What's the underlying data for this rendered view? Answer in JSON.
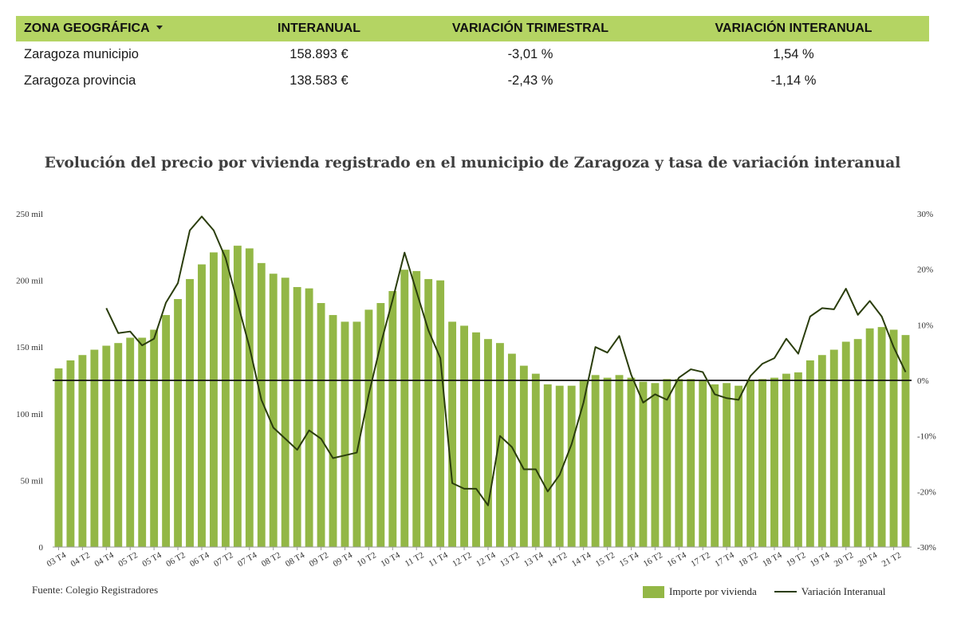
{
  "summary_table": {
    "headers": [
      "ZONA GEOGRÁFICA",
      "INTERANUAL",
      "VARIACIÓN TRIMESTRAL",
      "VARIACIÓN INTERANUAL"
    ],
    "rows": [
      {
        "zone": "Zaragoza municipio",
        "interanual": "158.893 €",
        "var_trimestral": "-3,01 %",
        "var_interanual": "1,54 %"
      },
      {
        "zone": "Zaragoza provincia",
        "interanual": "138.583 €",
        "var_trimestral": "-2,43 %",
        "var_interanual": "-1,14 %"
      }
    ],
    "header_color": "#b4d463"
  },
  "chart": {
    "source": "Fuente: Colegio Registradores"
  },
  "chart_data": {
    "type": "bar",
    "title": "Evolución del precio por vivienda registrado en el municipio de Zaragoza y tasa de variación interanual",
    "xlabel": "",
    "ylabel": "",
    "ylim": [
      0,
      250000
    ],
    "y2lim": [
      -30,
      30
    ],
    "y_tick_labels": [
      "0",
      "50 mil",
      "100 mil",
      "150 mil",
      "200 mil",
      "250 mil"
    ],
    "y_tick_values": [
      0,
      50000,
      100000,
      150000,
      200000,
      250000
    ],
    "y2_tick_labels": [
      "-30%",
      "-20%",
      "-10%",
      "0%",
      "10%",
      "20%",
      "30%"
    ],
    "y2_tick_values": [
      -30,
      -20,
      -10,
      0,
      10,
      20,
      30
    ],
    "x_tick_labels": [
      "03 T4",
      "04 T2",
      "04 T4",
      "05 T2",
      "05 T4",
      "06 T2",
      "06 T4",
      "07 T2",
      "07 T4",
      "08 T2",
      "08 T4",
      "09 T2",
      "09 T4",
      "10 T2",
      "10 T4",
      "11 T2",
      "11 T4",
      "12 T2",
      "12 T4",
      "13 T2",
      "13 T4",
      "14 T2",
      "14 T4",
      "15 T2",
      "15 T4",
      "16 T2",
      "16 T4",
      "17 T2",
      "17 T4",
      "18 T2",
      "18 T4",
      "19 T2",
      "19 T4",
      "20 T2",
      "20 T4",
      "21 T2"
    ],
    "categories": [
      "03 T4",
      "04 T1",
      "04 T2",
      "04 T3",
      "04 T4",
      "05 T1",
      "05 T2",
      "05 T3",
      "05 T4",
      "06 T1",
      "06 T2",
      "06 T3",
      "06 T4",
      "07 T1",
      "07 T2",
      "07 T3",
      "07 T4",
      "08 T1",
      "08 T2",
      "08 T3",
      "08 T4",
      "09 T1",
      "09 T2",
      "09 T3",
      "09 T4",
      "10 T1",
      "10 T2",
      "10 T3",
      "10 T4",
      "11 T1",
      "11 T2",
      "11 T3",
      "11 T4",
      "12 T1",
      "12 T2",
      "12 T3",
      "12 T4",
      "13 T1",
      "13 T2",
      "13 T3",
      "13 T4",
      "14 T1",
      "14 T2",
      "14 T3",
      "14 T4",
      "15 T1",
      "15 T2",
      "15 T3",
      "15 T4",
      "16 T1",
      "16 T2",
      "16 T3",
      "16 T4",
      "17 T1",
      "17 T2",
      "17 T3",
      "17 T4",
      "18 T1",
      "18 T2",
      "18 T3",
      "18 T4",
      "19 T1",
      "19 T2",
      "19 T3",
      "19 T4",
      "20 T1",
      "20 T2",
      "20 T3",
      "20 T4",
      "21 T1",
      "21 T2",
      "21 T3"
    ],
    "series": [
      {
        "name": "Importe por vivienda",
        "type": "bar",
        "axis": "left",
        "color": "#93b746",
        "values": [
          134000,
          140000,
          144000,
          148000,
          151000,
          153000,
          157000,
          157000,
          163000,
          174000,
          186000,
          201000,
          212000,
          221000,
          223000,
          226000,
          224000,
          213000,
          205000,
          202000,
          195000,
          194000,
          183000,
          174000,
          169000,
          169000,
          178000,
          183000,
          192000,
          208000,
          207000,
          201000,
          200000,
          169000,
          166000,
          161000,
          156000,
          153000,
          145000,
          136000,
          130000,
          122000,
          121000,
          121000,
          125000,
          129000,
          127000,
          129000,
          127000,
          124000,
          123000,
          126000,
          126000,
          126000,
          125000,
          122000,
          123000,
          121000,
          125000,
          126000,
          127000,
          130000,
          131000,
          140000,
          144000,
          148000,
          154000,
          156000,
          164000,
          165000,
          163000,
          159000
        ]
      },
      {
        "name": "Variación Interanual",
        "type": "line",
        "axis": "right",
        "color": "#2a3d0c",
        "values": [
          null,
          null,
          null,
          null,
          13,
          8.5,
          8.8,
          6.3,
          7.5,
          14,
          17.5,
          27,
          29.5,
          27,
          22,
          14,
          6,
          -3.5,
          -8.5,
          -10.5,
          -12.5,
          -9,
          -10.5,
          -14,
          -13.5,
          -13,
          -2.5,
          6.5,
          14.5,
          23,
          16,
          9,
          4,
          -18.5,
          -19.5,
          -19.5,
          -22.5,
          -10,
          -12,
          -16,
          -16,
          -20,
          -17,
          -11.5,
          -4,
          6,
          5,
          8,
          1,
          -4,
          -2.5,
          -3.5,
          0.5,
          2,
          1.5,
          -2.5,
          -3.2,
          -3.5,
          0.8,
          3,
          4,
          7.5,
          4.8,
          11.5,
          13,
          12.8,
          16.5,
          11.8,
          14.3,
          11.5,
          6,
          1.5
        ]
      }
    ],
    "legend": {
      "items": [
        "Importe por vivienda",
        "Variación Interanual"
      ],
      "position": "bottom-right"
    },
    "grid": false
  }
}
